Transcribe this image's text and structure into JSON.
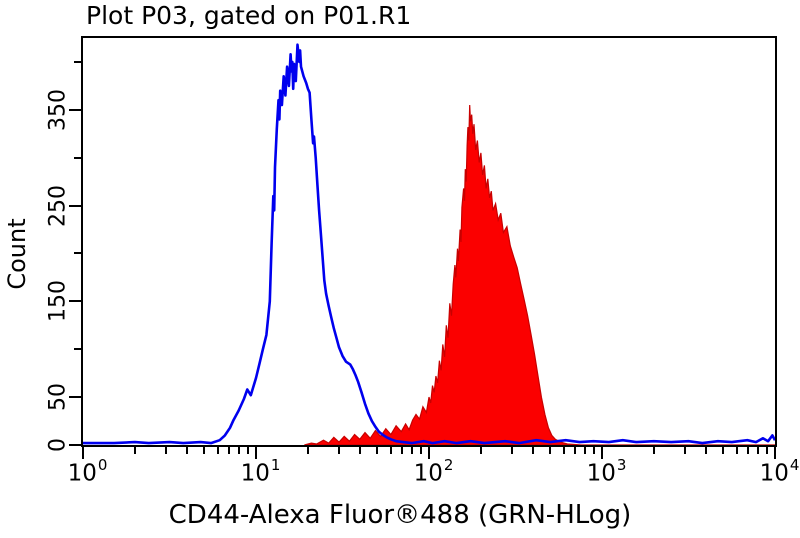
{
  "title": "Plot P03, gated on P01.R1",
  "colors": {
    "axis": "#000000",
    "blue_curve": "#0000ee",
    "red_fill": "#fb0000",
    "red_edge": "#c80000",
    "background": "#ffffff"
  },
  "chart_data": {
    "type": "area",
    "subtype": "flow-cytometry-overlay-histogram",
    "title": "Plot P03, gated on P01.R1",
    "xlabel": "CD44-Alexa Fluor®488 (GRN-HLog)",
    "ylabel": "Count",
    "x_scale": "log10",
    "x_range_exponents": [
      0,
      4
    ],
    "ylim": [
      0,
      425
    ],
    "grid": false,
    "legend": "none",
    "y_ticks": [
      {
        "value": 0,
        "label": "0"
      },
      {
        "value": 50,
        "label": "50"
      },
      {
        "value": 100,
        "label": ""
      },
      {
        "value": 150,
        "label": "150"
      },
      {
        "value": 200,
        "label": ""
      },
      {
        "value": 250,
        "label": "250"
      },
      {
        "value": 300,
        "label": ""
      },
      {
        "value": 350,
        "label": "350"
      },
      {
        "value": 400,
        "label": ""
      }
    ],
    "x_major_ticks": [
      {
        "exponent": 0,
        "base": "10",
        "sup": "0"
      },
      {
        "exponent": 1,
        "base": "10",
        "sup": "1"
      },
      {
        "exponent": 2,
        "base": "10",
        "sup": "2"
      },
      {
        "exponent": 3,
        "base": "10",
        "sup": "3"
      },
      {
        "exponent": 4,
        "base": "10",
        "sup": "4"
      }
    ],
    "series": [
      {
        "name": "blue-open-histogram",
        "style": "line",
        "color": "#0000ee",
        "peak": {
          "x_log": 1.24,
          "count": 418
        },
        "points": [
          [
            0,
            2
          ],
          [
            0.18,
            2
          ],
          [
            0.3,
            3
          ],
          [
            0.38,
            2
          ],
          [
            0.5,
            3
          ],
          [
            0.58,
            2
          ],
          [
            0.68,
            3
          ],
          [
            0.74,
            2
          ],
          [
            0.79,
            5
          ],
          [
            0.82,
            10
          ],
          [
            0.85,
            18
          ],
          [
            0.87,
            26
          ],
          [
            0.9,
            36
          ],
          [
            0.93,
            48
          ],
          [
            0.95,
            58
          ],
          [
            0.97,
            52
          ],
          [
            1.0,
            70
          ],
          [
            1.02,
            85
          ],
          [
            1.04,
            100
          ],
          [
            1.06,
            115
          ],
          [
            1.08,
            150
          ],
          [
            1.09,
            210
          ],
          [
            1.1,
            260
          ],
          [
            1.105,
            245
          ],
          [
            1.11,
            290
          ],
          [
            1.12,
            330
          ],
          [
            1.13,
            360
          ],
          [
            1.135,
            340
          ],
          [
            1.14,
            370
          ],
          [
            1.15,
            355
          ],
          [
            1.16,
            385
          ],
          [
            1.17,
            365
          ],
          [
            1.18,
            395
          ],
          [
            1.19,
            375
          ],
          [
            1.2,
            408
          ],
          [
            1.205,
            390
          ],
          [
            1.21,
            400
          ],
          [
            1.215,
            372
          ],
          [
            1.22,
            398
          ],
          [
            1.23,
            380
          ],
          [
            1.24,
            418
          ],
          [
            1.25,
            400
          ],
          [
            1.255,
            412
          ],
          [
            1.26,
            395
          ],
          [
            1.275,
            385
          ],
          [
            1.29,
            378
          ],
          [
            1.3,
            372
          ],
          [
            1.31,
            368
          ],
          [
            1.32,
            340
          ],
          [
            1.33,
            315
          ],
          [
            1.335,
            322
          ],
          [
            1.345,
            300
          ],
          [
            1.355,
            272
          ],
          [
            1.365,
            245
          ],
          [
            1.375,
            220
          ],
          [
            1.385,
            196
          ],
          [
            1.395,
            172
          ],
          [
            1.405,
            158
          ],
          [
            1.42,
            145
          ],
          [
            1.435,
            133
          ],
          [
            1.45,
            122
          ],
          [
            1.465,
            112
          ],
          [
            1.48,
            102
          ],
          [
            1.5,
            93
          ],
          [
            1.52,
            87
          ],
          [
            1.545,
            84
          ],
          [
            1.56,
            79
          ],
          [
            1.575,
            73
          ],
          [
            1.59,
            66
          ],
          [
            1.61,
            55
          ],
          [
            1.63,
            43
          ],
          [
            1.65,
            33
          ],
          [
            1.67,
            25
          ],
          [
            1.69,
            19
          ],
          [
            1.71,
            14
          ],
          [
            1.73,
            11
          ],
          [
            1.755,
            8
          ],
          [
            1.78,
            6
          ],
          [
            1.81,
            4
          ],
          [
            1.85,
            3
          ],
          [
            1.9,
            2
          ],
          [
            1.97,
            4
          ],
          [
            2.02,
            2
          ],
          [
            2.09,
            4
          ],
          [
            2.16,
            2
          ],
          [
            2.24,
            4
          ],
          [
            2.32,
            2
          ],
          [
            2.44,
            4
          ],
          [
            2.52,
            2
          ],
          [
            2.62,
            5
          ],
          [
            2.7,
            3
          ],
          [
            2.79,
            5
          ],
          [
            2.87,
            3
          ],
          [
            2.95,
            4
          ],
          [
            3.04,
            3
          ],
          [
            3.12,
            5
          ],
          [
            3.2,
            3
          ],
          [
            3.3,
            4
          ],
          [
            3.4,
            3
          ],
          [
            3.5,
            4
          ],
          [
            3.58,
            2
          ],
          [
            3.67,
            4
          ],
          [
            3.75,
            3
          ],
          [
            3.84,
            5
          ],
          [
            3.89,
            3
          ],
          [
            3.93,
            7
          ],
          [
            3.96,
            4
          ],
          [
            3.985,
            10
          ],
          [
            4.0,
            5
          ]
        ]
      },
      {
        "name": "red-filled-histogram",
        "style": "filled",
        "color": "#fb0000",
        "edge_color": "#c80000",
        "peak": {
          "x_log": 2.235,
          "count": 355
        },
        "points": [
          [
            1.28,
            0
          ],
          [
            1.32,
            2
          ],
          [
            1.35,
            1
          ],
          [
            1.39,
            5
          ],
          [
            1.42,
            2
          ],
          [
            1.45,
            8
          ],
          [
            1.48,
            3
          ],
          [
            1.51,
            9
          ],
          [
            1.54,
            4
          ],
          [
            1.57,
            11
          ],
          [
            1.6,
            6
          ],
          [
            1.63,
            13
          ],
          [
            1.66,
            7
          ],
          [
            1.69,
            15
          ],
          [
            1.72,
            9
          ],
          [
            1.75,
            17
          ],
          [
            1.78,
            11
          ],
          [
            1.81,
            20
          ],
          [
            1.84,
            14
          ],
          [
            1.865,
            22
          ],
          [
            1.885,
            16
          ],
          [
            1.905,
            26
          ],
          [
            1.925,
            32
          ],
          [
            1.945,
            27
          ],
          [
            1.965,
            40
          ],
          [
            1.985,
            34
          ],
          [
            2.0,
            50
          ],
          [
            2.01,
            44
          ],
          [
            2.02,
            62
          ],
          [
            2.03,
            55
          ],
          [
            2.04,
            72
          ],
          [
            2.05,
            65
          ],
          [
            2.06,
            88
          ],
          [
            2.07,
            78
          ],
          [
            2.08,
            105
          ],
          [
            2.09,
            92
          ],
          [
            2.1,
            125
          ],
          [
            2.11,
            112
          ],
          [
            2.12,
            148
          ],
          [
            2.13,
            135
          ],
          [
            2.14,
            168
          ],
          [
            2.15,
            188
          ],
          [
            2.155,
            175
          ],
          [
            2.165,
            205
          ],
          [
            2.17,
            192
          ],
          [
            2.18,
            225
          ],
          [
            2.185,
            212
          ],
          [
            2.19,
            248
          ],
          [
            2.2,
            268
          ],
          [
            2.205,
            255
          ],
          [
            2.21,
            288
          ],
          [
            2.215,
            275
          ],
          [
            2.22,
            312
          ],
          [
            2.225,
            332
          ],
          [
            2.23,
            318
          ],
          [
            2.235,
            355
          ],
          [
            2.24,
            338
          ],
          [
            2.247,
            345
          ],
          [
            2.253,
            325
          ],
          [
            2.26,
            335
          ],
          [
            2.27,
            308
          ],
          [
            2.28,
            318
          ],
          [
            2.29,
            295
          ],
          [
            2.3,
            305
          ],
          [
            2.31,
            282
          ],
          [
            2.32,
            292
          ],
          [
            2.33,
            268
          ],
          [
            2.34,
            278
          ],
          [
            2.35,
            258
          ],
          [
            2.36,
            265
          ],
          [
            2.37,
            245
          ],
          [
            2.385,
            252
          ],
          [
            2.4,
            235
          ],
          [
            2.415,
            242
          ],
          [
            2.43,
            222
          ],
          [
            2.45,
            228
          ],
          [
            2.47,
            208
          ],
          [
            2.49,
            196
          ],
          [
            2.51,
            185
          ],
          [
            2.53,
            168
          ],
          [
            2.55,
            152
          ],
          [
            2.57,
            135
          ],
          [
            2.59,
            115
          ],
          [
            2.61,
            95
          ],
          [
            2.63,
            72
          ],
          [
            2.65,
            50
          ],
          [
            2.67,
            32
          ],
          [
            2.69,
            18
          ],
          [
            2.71,
            10
          ],
          [
            2.73,
            6
          ],
          [
            2.76,
            3
          ],
          [
            2.8,
            1
          ],
          [
            2.88,
            0
          ],
          [
            4.0,
            0
          ]
        ]
      }
    ]
  }
}
